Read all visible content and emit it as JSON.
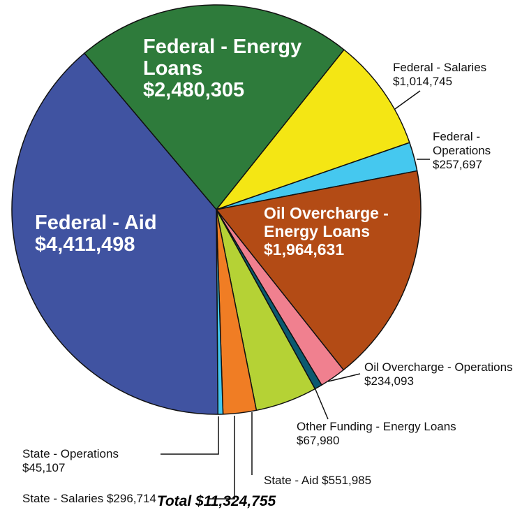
{
  "chart_data": {
    "type": "pie",
    "title": "Total $11,324,755",
    "categories": [
      "Federal - Energy Loans",
      "Federal - Salaries",
      "Federal - Operations",
      "Oil Overcharge - Energy Loans",
      "Oil Overcharge - Operations",
      "Other Funding - Energy Loans",
      "State - Aid",
      "State - Salaries",
      "State - Operations",
      "Federal - Aid"
    ],
    "values": [
      2480305,
      1014745,
      257697,
      1964631,
      234093,
      67980,
      551985,
      296714,
      45107,
      4411498
    ],
    "value_labels": [
      "$2,480,305",
      "$1,014,745",
      "$257,697",
      "$1,964,631",
      "$234,093",
      "$67,980",
      "$551,985",
      "$296,714",
      "$45,107",
      "$4,411,498"
    ],
    "colors": [
      "#2e7b3b",
      "#f4e614",
      "#45c8ef",
      "#b34b15",
      "#f0808f",
      "#0b5a70",
      "#b5d235",
      "#f07d24",
      "#45c8ef",
      "#4053a1"
    ]
  }
}
